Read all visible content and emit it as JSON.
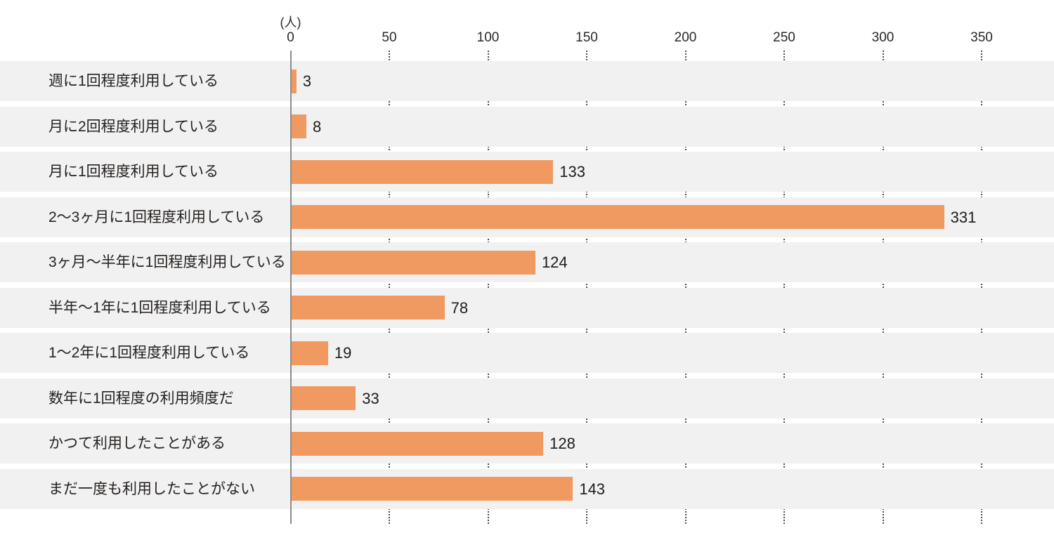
{
  "chart_data": {
    "type": "bar",
    "orientation": "horizontal",
    "title": "",
    "unit_label": "(人)",
    "xlabel": "",
    "ylabel": "",
    "categories": [
      "週に1回程度利用している",
      "月に2回程度利用している",
      "月に1回程度利用している",
      "2〜3ヶ月に1回程度利用している",
      "3ヶ月〜半年に1回程度利用している",
      "半年〜1年に1回程度利用している",
      "1〜2年に1回程度利用している",
      "数年に1回程度の利用頻度だ",
      "かつて利用したことがある",
      "まだ一度も利用したことがない"
    ],
    "values": [
      3,
      8,
      133,
      331,
      124,
      78,
      19,
      33,
      128,
      143
    ],
    "x_ticks": [
      0,
      50,
      100,
      150,
      200,
      250,
      300,
      350
    ],
    "xlim": [
      0,
      385
    ],
    "legend": "none",
    "grid": "dotted-vertical-between-row-stripes",
    "colors": {
      "bar": "#F09A62",
      "row_stripe": "#F1F1F1",
      "background": "#FFFFFF",
      "axis_line": "#8C8C8C",
      "grid_dots": "#4D4D4D",
      "text": "#2B2725"
    }
  }
}
